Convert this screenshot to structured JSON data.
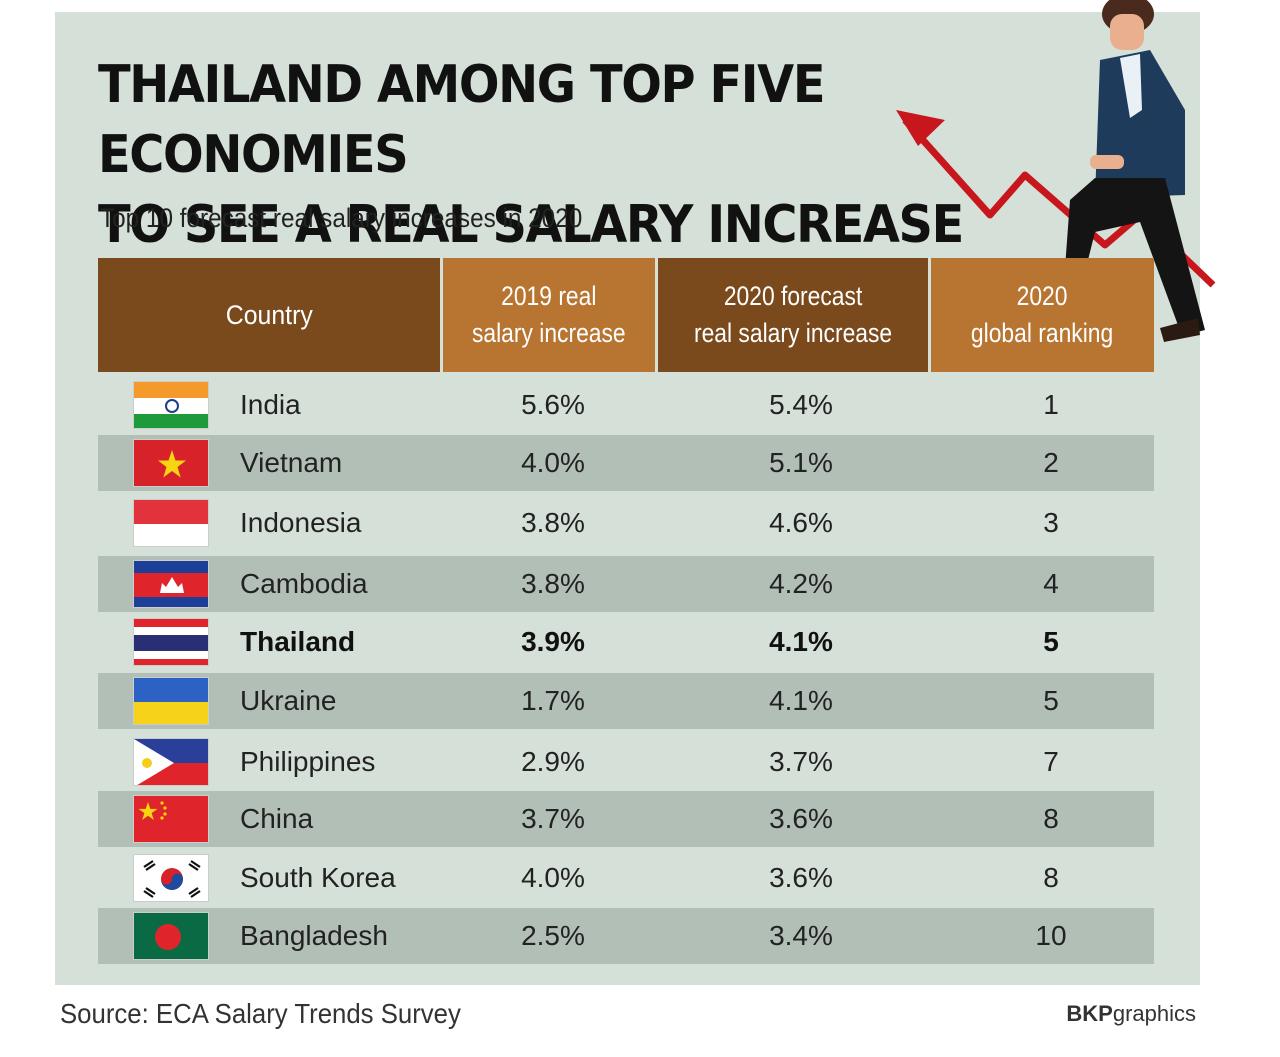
{
  "title_line1": "THAILAND AMONG TOP FIVE ECONOMIES",
  "title_line2": "TO SEE A REAL SALARY INCREASE",
  "subtitle": "Top 10 forecast real salary increases in 2020",
  "headers": {
    "country": "Country",
    "y2019_line1": "2019 real",
    "y2019_line2": "salary increase",
    "y2020_line1": "2020 forecast",
    "y2020_line2": "real salary increase",
    "rank_line1": "2020",
    "rank_line2": "global ranking"
  },
  "rows": [
    {
      "country": "India",
      "y2019": "5.6%",
      "y2020": "5.4%",
      "rank": "1",
      "flag": "india-flag-icon"
    },
    {
      "country": "Vietnam",
      "y2019": "4.0%",
      "y2020": "5.1%",
      "rank": "2",
      "flag": "vietnam-flag-icon"
    },
    {
      "country": "Indonesia",
      "y2019": "3.8%",
      "y2020": "4.6%",
      "rank": "3",
      "flag": "indonesia-flag-icon"
    },
    {
      "country": "Cambodia",
      "y2019": "3.8%",
      "y2020": "4.2%",
      "rank": "4",
      "flag": "cambodia-flag-icon"
    },
    {
      "country": "Thailand",
      "y2019": "3.9%",
      "y2020": "4.1%",
      "rank": "5",
      "flag": "thailand-flag-icon",
      "highlight": true
    },
    {
      "country": "Ukraine",
      "y2019": "1.7%",
      "y2020": "4.1%",
      "rank": "5",
      "flag": "ukraine-flag-icon"
    },
    {
      "country": "Philippines",
      "y2019": "2.9%",
      "y2020": "3.7%",
      "rank": "7",
      "flag": "philippines-flag-icon"
    },
    {
      "country": "China",
      "y2019": "3.7%",
      "y2020": "3.6%",
      "rank": "8",
      "flag": "china-flag-icon"
    },
    {
      "country": "South Korea",
      "y2019": "4.0%",
      "y2020": "3.6%",
      "rank": "8",
      "flag": "south-korea-flag-icon"
    },
    {
      "country": "Bangladesh",
      "y2019": "2.5%",
      "y2020": "3.4%",
      "rank": "10",
      "flag": "bangladesh-flag-icon"
    }
  ],
  "source": "Source: ECA Salary Trends Survey",
  "credit_bold": "BKP",
  "credit_rest": "graphics",
  "colors": {
    "panel": "#d5e0d8",
    "header_dark": "#7a4a1c",
    "header_light": "#b87531",
    "row_alt": "#b2bfb7",
    "arrow": "#c8161d"
  },
  "chart_data": {
    "type": "table",
    "title": "THAILAND AMONG TOP FIVE ECONOMIES TO SEE A REAL SALARY INCREASE",
    "subtitle": "Top 10 forecast real salary increases in 2020",
    "columns": [
      "Country",
      "2019 real salary increase",
      "2020 forecast real salary increase",
      "2020 global ranking"
    ],
    "rows": [
      [
        "India",
        5.6,
        5.4,
        1
      ],
      [
        "Vietnam",
        4.0,
        5.1,
        2
      ],
      [
        "Indonesia",
        3.8,
        4.6,
        3
      ],
      [
        "Cambodia",
        3.8,
        4.2,
        4
      ],
      [
        "Thailand",
        3.9,
        4.1,
        5
      ],
      [
        "Ukraine",
        1.7,
        4.1,
        5
      ],
      [
        "Philippines",
        2.9,
        3.7,
        7
      ],
      [
        "China",
        3.7,
        3.6,
        8
      ],
      [
        "South Korea",
        4.0,
        3.6,
        8
      ],
      [
        "Bangladesh",
        2.5,
        3.4,
        10
      ]
    ],
    "units": "%",
    "highlighted_row": "Thailand"
  }
}
